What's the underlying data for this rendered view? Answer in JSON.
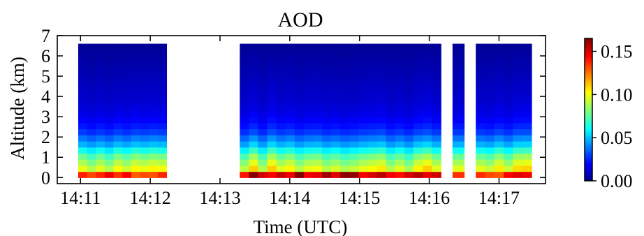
{
  "chart_data": {
    "type": "heatmap",
    "title": "AOD",
    "xlabel": "Time (UTC)",
    "ylabel": "Altitude (km)",
    "x_ticks": [
      "14:11",
      "14:12",
      "14:13",
      "14:14",
      "14:15",
      "14:16",
      "14:17"
    ],
    "y_ticks": [
      "0",
      "1",
      "2",
      "3",
      "4",
      "5",
      "6",
      "7"
    ],
    "xlim": [
      "14:10:40",
      "14:17:40"
    ],
    "ylim": [
      -0.3,
      7
    ],
    "colorbar": {
      "colormap": "jet",
      "range": [
        0,
        0.165
      ],
      "ticks": [
        "0.00",
        "0.05",
        "0.10",
        "0.15"
      ]
    },
    "altitude_km": [
      0.15,
      0.45,
      0.75,
      1.05,
      1.35,
      1.65,
      1.95,
      2.25,
      2.55,
      2.85,
      3.15,
      3.45,
      3.75,
      4.05,
      4.35,
      4.65,
      4.95,
      5.25,
      5.55,
      5.85,
      6.15,
      6.45
    ],
    "aod_profile_typical": [
      0.11,
      0.1,
      0.09,
      0.08,
      0.065,
      0.05,
      0.04,
      0.03,
      0.024,
      0.02,
      0.017,
      0.015,
      0.013,
      0.012,
      0.011,
      0.01,
      0.009,
      0.008,
      0.007,
      0.006,
      0.005,
      0.004
    ],
    "segments": [
      {
        "start": "14:10:58",
        "end": "14:12:14",
        "near_surface_max": 0.15
      },
      {
        "start": "14:13:17",
        "end": "14:16:10",
        "near_surface_max": 0.165
      },
      {
        "start": "14:16:20",
        "end": "14:16:30",
        "near_surface_max": 0.14
      },
      {
        "start": "14:16:40",
        "end": "14:17:28",
        "near_surface_max": 0.15
      }
    ]
  }
}
